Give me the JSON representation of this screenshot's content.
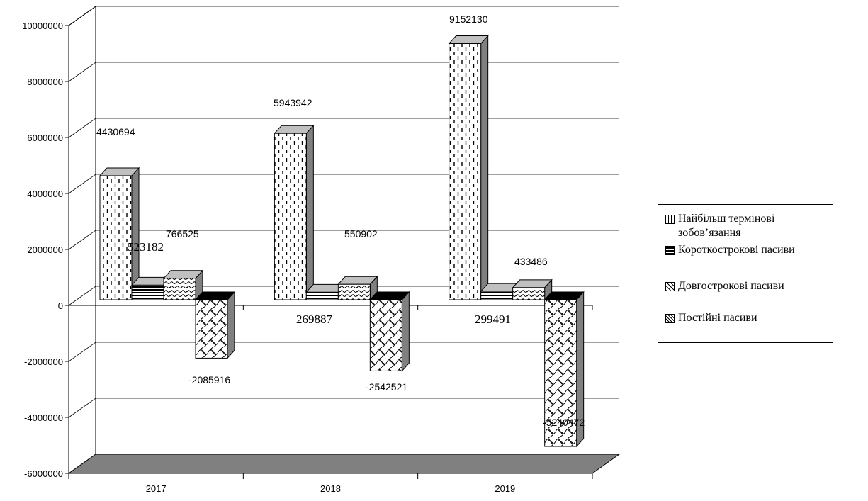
{
  "chart_data": {
    "type": "bar",
    "three_d": true,
    "categories": [
      "2017",
      "2018",
      "2019"
    ],
    "series": [
      {
        "name": "Найбільш термінові зобов’язання",
        "values": [
          4430694,
          5943942,
          9152130
        ],
        "pattern": "dashes"
      },
      {
        "name": "Короткострокові пасиви",
        "values": [
          523182,
          269887,
          299491
        ],
        "pattern": "hlines"
      },
      {
        "name": "Довгострокові пасиви",
        "values": [
          766525,
          550902,
          433486
        ],
        "pattern": "waves"
      },
      {
        "name": "Постійні пасиви",
        "values": [
          -2085916,
          -2542521,
          -5240472
        ],
        "pattern": "weave"
      }
    ],
    "data_labels": [
      [
        "4430694",
        "5943942",
        "9152130"
      ],
      [
        "523182",
        "269887",
        "299491"
      ],
      [
        "766525",
        "550902",
        "433486"
      ],
      [
        "-2085916",
        "-2542521",
        "-5240472"
      ]
    ],
    "y_ticks": [
      "10000000",
      "8000000",
      "6000000",
      "4000000",
      "2000000",
      "0",
      "-2000000",
      "-4000000",
      "-6000000"
    ],
    "ylim": [
      -6000000,
      10000000
    ],
    "title": "",
    "xlabel": "",
    "ylabel": "",
    "grid": true,
    "legend_position": "right",
    "colors": {
      "floor": "#808080",
      "wall": "#ffffff",
      "grid": "#000000",
      "dark_face": "#808080",
      "top_face": "#c0c0c0"
    }
  }
}
